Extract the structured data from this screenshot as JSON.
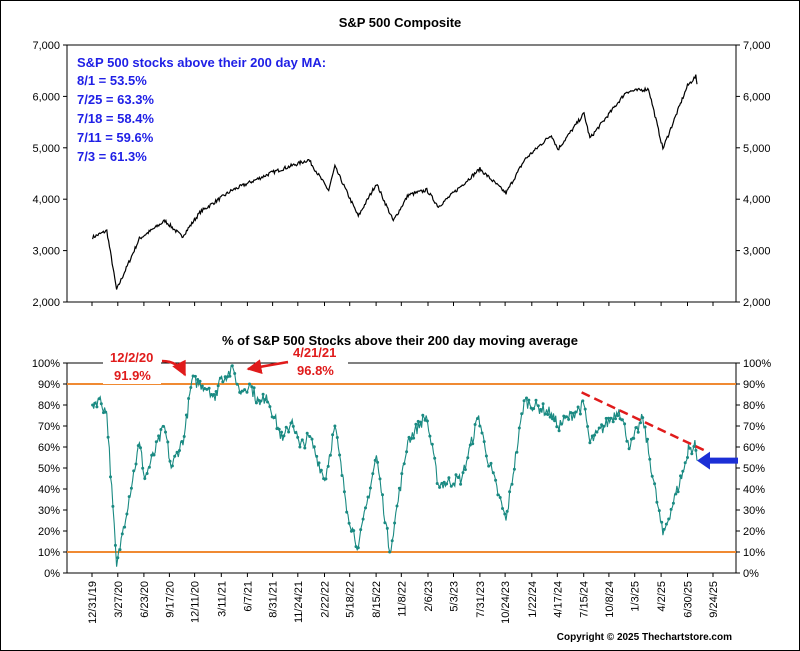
{
  "chart_data": [
    {
      "type": "line",
      "title": "S&P 500 Composite",
      "y_ticks": [
        "2,000",
        "3,000",
        "4,000",
        "5,000",
        "6,000",
        "7,000"
      ],
      "ylim": [
        2000,
        7000
      ],
      "xlim": [
        "2019-12-31",
        "2025-09-24"
      ],
      "grid": false,
      "series": [
        {
          "x": [
            "2020-01-02",
            "2020-02-19",
            "2020-03-23",
            "2020-06-08",
            "2020-09-02",
            "2020-10-30",
            "2020-12-31",
            "2021-04-15",
            "2021-08-31",
            "2021-12-31",
            "2022-03-08",
            "2022-03-29",
            "2022-06-16",
            "2022-08-16",
            "2022-10-12",
            "2022-12-01",
            "2023-02-02",
            "2023-03-13",
            "2023-07-31",
            "2023-10-27",
            "2023-12-29",
            "2024-03-28",
            "2024-04-19",
            "2024-07-16",
            "2024-08-05",
            "2024-12-06",
            "2025-02-19",
            "2025-04-08",
            "2025-06-30",
            "2025-07-28",
            "2025-08-01"
          ],
          "values": [
            3258,
            3386,
            2237,
            3232,
            3580,
            3270,
            3756,
            4170,
            4523,
            4766,
            4170,
            4632,
            3667,
            4305,
            3577,
            4080,
            4179,
            3855,
            4589,
            4117,
            4770,
            5254,
            4967,
            5667,
            5186,
            6090,
            6144,
            4983,
            6205,
            6390,
            6238
          ]
        }
      ],
      "notes": {
        "heading": "S&P 500 stocks above their 200 day MA:",
        "lines": [
          "8/1 = 53.5%",
          "7/25 = 63.3%",
          "7/18 = 58.4%",
          "7/11 = 59.6%",
          "7/3 = 61.3%"
        ]
      }
    },
    {
      "type": "line",
      "title": "% of S&P 500 Stocks above their 200 day moving average",
      "y_ticks": [
        "0%",
        "10%",
        "20%",
        "30%",
        "40%",
        "50%",
        "60%",
        "70%",
        "80%",
        "90%",
        "100%"
      ],
      "ylim": [
        0,
        100
      ],
      "xlim": [
        "2019-12-31",
        "2025-09-24"
      ],
      "x_tick_labels": [
        "12/31/19",
        "3/27/20",
        "6/23/20",
        "9/17/20",
        "12/11/20",
        "3/11/21",
        "6/7/21",
        "8/31/21",
        "11/24/21",
        "2/22/22",
        "5/18/22",
        "8/15/22",
        "11/8/22",
        "2/6/23",
        "5/3/23",
        "7/31/23",
        "10/24/23",
        "1/22/24",
        "4/17/24",
        "7/15/24",
        "10/8/24",
        "1/3/25",
        "4/2/25",
        "6/30/25",
        "9/24/25"
      ],
      "x_tick_dates": [
        "2019-12-31",
        "2020-03-27",
        "2020-06-23",
        "2020-09-17",
        "2020-12-11",
        "2021-03-11",
        "2021-06-07",
        "2021-08-31",
        "2021-11-24",
        "2022-02-22",
        "2022-05-18",
        "2022-08-15",
        "2022-11-08",
        "2023-02-06",
        "2023-05-03",
        "2023-07-31",
        "2023-10-24",
        "2024-01-22",
        "2024-04-17",
        "2024-07-15",
        "2024-10-08",
        "2025-01-03",
        "2025-04-02",
        "2025-06-30",
        "2025-09-24"
      ],
      "reference_lines": [
        90,
        10
      ],
      "series": [
        {
          "x": [
            "2020-01-02",
            "2020-01-24",
            "2020-02-19",
            "2020-03-23",
            "2020-04-15",
            "2020-06-08",
            "2020-06-26",
            "2020-08-31",
            "2020-09-23",
            "2020-11-06",
            "2020-12-02",
            "2021-01-29",
            "2021-02-18",
            "2021-03-04",
            "2021-04-21",
            "2021-05-12",
            "2021-06-14",
            "2021-07-19",
            "2021-08-10",
            "2021-10-04",
            "2021-11-05",
            "2021-12-01",
            "2022-01-03",
            "2022-02-23",
            "2022-03-29",
            "2022-05-12",
            "2022-06-16",
            "2022-08-16",
            "2022-09-30",
            "2022-11-30",
            "2023-01-31",
            "2023-03-13",
            "2023-05-31",
            "2023-07-27",
            "2023-08-18",
            "2023-10-27",
            "2023-12-27",
            "2024-03-28",
            "2024-04-19",
            "2024-07-16",
            "2024-08-05",
            "2024-11-11",
            "2024-12-19",
            "2025-01-30",
            "2025-04-08",
            "2025-06-30",
            "2025-07-03",
            "2025-07-11",
            "2025-07-18",
            "2025-07-25",
            "2025-08-01"
          ],
          "values": [
            80,
            83,
            76,
            3,
            22,
            62,
            45,
            70,
            50,
            65,
            91.9,
            88,
            82,
            92,
            96.8,
            86,
            90,
            80,
            85,
            63,
            73,
            60,
            65,
            44,
            70,
            28,
            12,
            56,
            10,
            63,
            75,
            42,
            45,
            75,
            59,
            25,
            82,
            76,
            70,
            80,
            62,
            78,
            60,
            74,
            18,
            55,
            61.3,
            59.6,
            58.4,
            63.3,
            53.5
          ]
        }
      ],
      "annotations": [
        {
          "date": "12/2/20",
          "value": "91.9%"
        },
        {
          "date": "4/21/21",
          "value": "96.8%"
        }
      ],
      "trendline": {
        "from": [
          "2024-07-08",
          86
        ],
        "to": [
          "2025-09-01",
          58
        ]
      },
      "arrow_value": 53.5
    }
  ],
  "footer": {
    "copyright": "Copyright © 2025 Thechartstore.com"
  }
}
